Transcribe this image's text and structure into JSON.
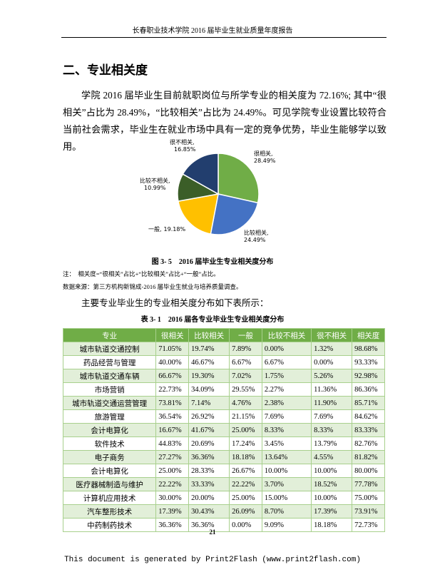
{
  "header": {
    "title": "长春职业技术学院 2016 届毕业生就业质量年度报告"
  },
  "section": {
    "title": "二、专业相关度",
    "paragraph": "学院 2016 届毕业生目前就职岗位与所学专业的相关度为 72.16%; 其中“很相关”占比为 28.49%，“比较相关”占比为 24.49%。可见学院专业设置比较符合当前社会需求，毕业生在就业市场中具有一定的竞争优势，毕业生能够学以致用。"
  },
  "chart_data": {
    "type": "pie",
    "categories": [
      "很相关,",
      "比较相关,",
      "一般,",
      "比较不相关,",
      "很不相关,"
    ],
    "values": [
      28.49,
      24.49,
      19.18,
      10.99,
      16.85
    ],
    "value_labels": [
      "28.49%",
      "24.49%",
      "19.18%",
      "10.99%",
      "16.85%"
    ],
    "colors": [
      "#70ad47",
      "#4472c4",
      "#ffc000",
      "#3b5e28",
      "#223e6e"
    ]
  },
  "figure": {
    "caption": "图 3- 5　2016 届毕业生专业相关度分布",
    "notes": [
      "注：　相关度=“很相关”占比+“比较相关”占比+“一般”占比。",
      "数据来源：第三方机构新锦成-2016 届毕业生就业与培养质量调查。"
    ]
  },
  "intro": "主要专业毕业生的专业相关度分布如下表所示：",
  "table": {
    "caption": "表 3- 1　2016 届各专业毕业生专业相关度分布",
    "header": [
      "专业",
      "很相关",
      "比较相关",
      "一般",
      "比较不相关",
      "很不相关",
      "相关度"
    ],
    "rows": [
      [
        "城市轨道交通控制",
        "71.05%",
        "19.74%",
        "7.89%",
        "0.00%",
        "1.32%",
        "98.68%"
      ],
      [
        "药品经营与管理",
        "40.00%",
        "46.67%",
        "6.67%",
        "6.67%",
        "0.00%",
        "93.33%"
      ],
      [
        "城市轨道交通车辆",
        "66.67%",
        "19.30%",
        "7.02%",
        "1.75%",
        "5.26%",
        "92.98%"
      ],
      [
        "市场营销",
        "22.73%",
        "34.09%",
        "29.55%",
        "2.27%",
        "11.36%",
        "86.36%"
      ],
      [
        "城市轨道交通运营管理",
        "73.81%",
        "7.14%",
        "4.76%",
        "2.38%",
        "11.90%",
        "85.71%"
      ],
      [
        "旅游管理",
        "36.54%",
        "26.92%",
        "21.15%",
        "7.69%",
        "7.69%",
        "84.62%"
      ],
      [
        "会计电算化",
        "16.67%",
        "41.67%",
        "25.00%",
        "8.33%",
        "8.33%",
        "83.33%"
      ],
      [
        "软件技术",
        "44.83%",
        "20.69%",
        "17.24%",
        "3.45%",
        "13.79%",
        "82.76%"
      ],
      [
        "电子商务",
        "27.27%",
        "36.36%",
        "18.18%",
        "13.64%",
        "4.55%",
        "81.82%"
      ],
      [
        "会计电算化",
        "25.00%",
        "28.33%",
        "26.67%",
        "10.00%",
        "10.00%",
        "80.00%"
      ],
      [
        "医疗器械制造与维护",
        "22.22%",
        "33.33%",
        "22.22%",
        "3.70%",
        "18.52%",
        "77.78%"
      ],
      [
        "计算机应用技术",
        "30.00%",
        "20.00%",
        "25.00%",
        "15.00%",
        "10.00%",
        "75.00%"
      ],
      [
        "汽车整形技术",
        "17.39%",
        "30.43%",
        "26.09%",
        "8.70%",
        "17.39%",
        "73.91%"
      ],
      [
        "中药制药技术",
        "36.36%",
        "36.36%",
        "0.00%",
        "9.09%",
        "18.18%",
        "72.73%"
      ]
    ]
  },
  "footer": {
    "page": "21",
    "note": "This document is generated by Print2Flash (www.print2flash.com)"
  }
}
